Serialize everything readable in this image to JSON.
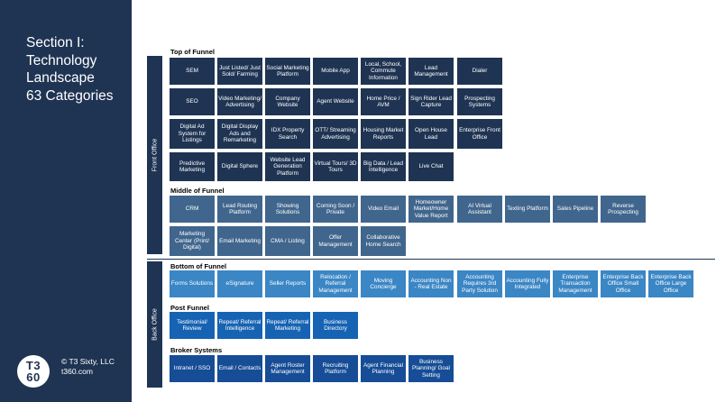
{
  "sidebar": {
    "title_lines": [
      "Section  I:",
      "Technology",
      "Landscape",
      "63 Categories"
    ],
    "logo_top": "T3",
    "logo_bottom": "60",
    "copyright": "© T3 Sixty, LLC",
    "website": "t360.com"
  },
  "bands": {
    "front_office": "Front Office",
    "back_office": "Back Office"
  },
  "colors": {
    "navy": "#1f3453",
    "middle_funnel": "#40668d",
    "bottom_funnel": "#3b86c5",
    "post_funnel": "#1763b3",
    "broker_systems": "#164d96"
  },
  "groups": {
    "top_funnel": {
      "label": "Top of Funnel",
      "rows": [
        [
          "SEM",
          "Just Listed/ Just Sold/ Farming",
          "Social Marketing Platform",
          "Mobile App",
          "Local, School, Commute Information",
          "Lead Management",
          "Dialer"
        ],
        [
          "SEO",
          "Video Marketing/ Advertising",
          "Company Website",
          "Agent Website",
          "Home Price / AVM",
          "Sign Rider Lead Capture",
          "Prospecting Systems"
        ],
        [
          "Digital Ad System for Listings",
          "Digital Display Ads and Remarketing",
          "IDX Property Search",
          "OTT/ Streaming Advertising",
          "Housing Market Reports",
          "Open House Lead",
          "Enterprise Front Office"
        ],
        [
          "Predictive Marketing",
          "Digital Sphere",
          "Website Lead Generation Platform",
          "Virtual Tours/ 3D Tours",
          "Big Data / Lead Intelligence",
          "Live Chat"
        ]
      ]
    },
    "middle_funnel": {
      "label": "Middle of Funnel",
      "rows": [
        [
          "CRM",
          "Lead Routing Platform",
          "Showing Solutions",
          "Coming Soon / Private",
          "Video Email",
          "Homeowner Market/Home Value Report",
          "AI Virtual Assistant",
          "Texting Platform",
          "Sales Pipeline",
          "Reverse Prospecting"
        ],
        [
          "Marketing Center (Print/ Digital)",
          "Email Marketing",
          "CMA / Listing",
          "Offer Management",
          "Collaborative Home Search"
        ]
      ]
    },
    "bottom_funnel": {
      "label": "Bottom of Funnel",
      "rows": [
        [
          "Forms Solutions",
          "eSignature",
          "Seller Reports",
          "Relocation / Referral Management",
          "Moving Concierge",
          "Accounting Non - Real Estate",
          "Accounting Requires 3rd Party Solution",
          "Accounting Fully Integrated",
          "Enterprise Transaction Management",
          "Enterprise Back Office Small Office",
          "Enterprise Back Office Large Office"
        ]
      ]
    },
    "post_funnel": {
      "label": "Post Funnel",
      "rows": [
        [
          "Testimonial/ Review",
          "Repeat/ Referral Intelligence",
          "Repeat/ Referral Marketing",
          "Business Directory"
        ]
      ]
    },
    "broker_systems": {
      "label": "Broker Systems",
      "rows": [
        [
          "Intranet / SSO",
          "Email / Contacts",
          "Agent Roster Management",
          "Recruiting Platform",
          "Agent Financial Planning",
          "Business Planning/ Goal Setting"
        ]
      ]
    }
  }
}
